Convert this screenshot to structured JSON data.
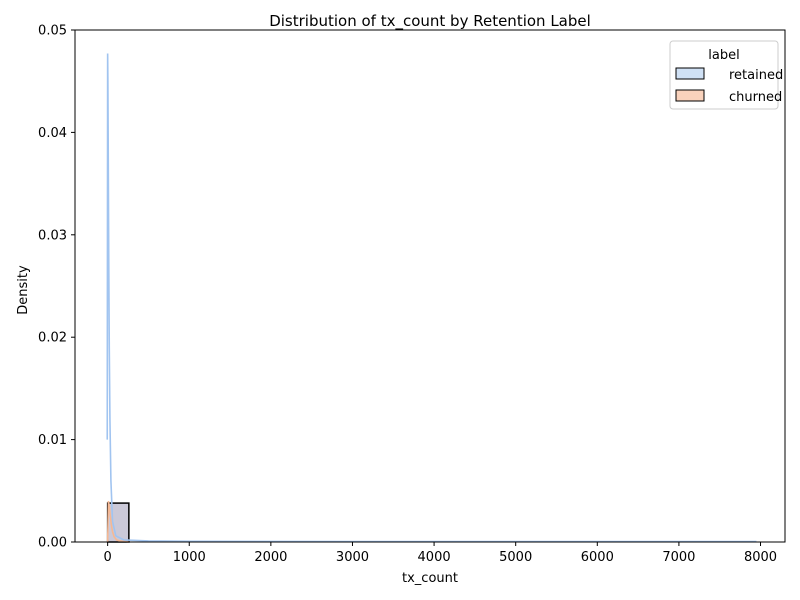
{
  "chart_data": {
    "type": "histogram",
    "title": "Distribution of tx_count by Retention Label",
    "xlabel": "tx_count",
    "ylabel": "Density",
    "xlim": [
      -400,
      8300
    ],
    "ylim": [
      0,
      0.05
    ],
    "x_ticks": [
      0,
      1000,
      2000,
      3000,
      4000,
      5000,
      6000,
      7000,
      8000
    ],
    "y_ticks": [
      0.0,
      0.01,
      0.02,
      0.03,
      0.04,
      0.05
    ],
    "x_tick_labels": [
      "0",
      "1000",
      "2000",
      "3000",
      "4000",
      "5000",
      "6000",
      "7000",
      "8000"
    ],
    "y_tick_labels": [
      "0.00",
      "0.01",
      "0.02",
      "0.03",
      "0.04",
      "0.05"
    ],
    "grid": false,
    "legend": {
      "title": "label",
      "placement": "top-right",
      "entries": [
        {
          "name": "retained",
          "fill": "#d0e1f5",
          "edge": "#000000"
        },
        {
          "name": "churned",
          "fill": "#f9d2bc",
          "edge": "#000000"
        }
      ]
    },
    "bins": [
      {
        "x0": 0,
        "x1": 260,
        "density_retained": 0.0038,
        "density_churned": 0.0038
      }
    ],
    "series": [
      {
        "name": "retained",
        "color": "#a1c4f0",
        "kde_x": [
          -5,
          0,
          3,
          8,
          14,
          20,
          28,
          40,
          60,
          100,
          200,
          500,
          1000,
          3000,
          6000,
          7950
        ],
        "kde_y": [
          0.01,
          0.0477,
          0.045,
          0.037,
          0.027,
          0.019,
          0.012,
          0.006,
          0.002,
          0.0006,
          0.0002,
          0.0001,
          7e-05,
          5e-05,
          4e-05,
          4e-05
        ]
      },
      {
        "name": "churned",
        "color": "#f5b894",
        "kde_x": [
          0,
          10,
          20,
          30,
          45,
          60,
          80,
          110,
          150,
          200,
          260
        ],
        "kde_y": [
          0.0,
          0.004,
          0.0035,
          0.0027,
          0.0017,
          0.001,
          0.0005,
          0.0002,
          0.0001,
          5e-05,
          0.0
        ]
      }
    ],
    "overlap_color": "#cbc9d8"
  }
}
